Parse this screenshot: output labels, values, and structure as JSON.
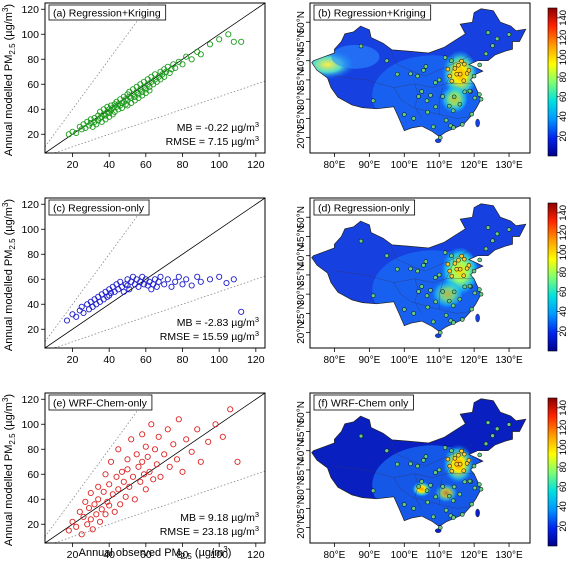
{
  "figure": {
    "x_axis_label": "Annual observed PM",
    "x_axis_label_sub": "2.5",
    "x_axis_label_unit": " (µg/m",
    "x_axis_label_sup": "3",
    "x_axis_label_tail": ")",
    "y_axis_label": "Annual modelled PM",
    "y_axis_label_sub": "2.5",
    "y_axis_label_unit": " (µg/m",
    "y_axis_label_sup": "3",
    "y_axis_label_tail": ")"
  },
  "colorbar": {
    "ticks": [
      "20",
      "40",
      "60",
      "80",
      "100",
      "120",
      "140"
    ],
    "tick_values": [
      20,
      40,
      60,
      80,
      100,
      120,
      140
    ],
    "range": [
      0,
      150
    ],
    "colors": [
      "#00008b",
      "#0033ff",
      "#00aaff",
      "#00e5e5",
      "#7fff7f",
      "#ffff00",
      "#ff9900",
      "#ff2200",
      "#8b0000"
    ]
  },
  "map_ticks": {
    "lon": [
      "80°E",
      "90°E",
      "100°E",
      "110°E",
      "120°E",
      "130°E"
    ],
    "lat": [
      "20°N",
      "25°N",
      "30°N",
      "35°N",
      "40°N",
      "45°N",
      "50°N"
    ]
  },
  "chart_data": [
    {
      "type": "scatter",
      "panel": "a",
      "title": "(a) Regression+Kriging",
      "color": "#1a9a1a",
      "xlim": [
        5,
        125
      ],
      "ylim": [
        5,
        125
      ],
      "xticks": [
        20,
        40,
        60,
        80,
        100,
        120
      ],
      "yticks": [
        20,
        40,
        60,
        80,
        100,
        120
      ],
      "reference_lines": [
        "1:1",
        "1:2",
        "2:1"
      ],
      "stats": {
        "mb_label": "MB = -0.22 µg/m",
        "rmse_label": "RMSE = 7.15 µg/m",
        "sup": "3"
      },
      "points": [
        [
          18,
          20
        ],
        [
          20,
          22
        ],
        [
          22,
          21
        ],
        [
          24,
          26
        ],
        [
          25,
          24
        ],
        [
          26,
          28
        ],
        [
          27,
          25
        ],
        [
          28,
          30
        ],
        [
          29,
          27
        ],
        [
          30,
          32
        ],
        [
          30,
          29
        ],
        [
          31,
          26
        ],
        [
          32,
          33
        ],
        [
          32,
          30
        ],
        [
          33,
          28
        ],
        [
          34,
          35
        ],
        [
          34,
          31
        ],
        [
          35,
          33
        ],
        [
          35,
          38
        ],
        [
          36,
          34
        ],
        [
          36,
          30
        ],
        [
          37,
          36
        ],
        [
          37,
          40
        ],
        [
          38,
          35
        ],
        [
          38,
          32
        ],
        [
          39,
          38
        ],
        [
          39,
          42
        ],
        [
          40,
          37
        ],
        [
          40,
          40
        ],
        [
          40,
          34
        ],
        [
          41,
          43
        ],
        [
          41,
          39
        ],
        [
          42,
          36
        ],
        [
          42,
          41
        ],
        [
          43,
          44
        ],
        [
          43,
          38
        ],
        [
          44,
          42
        ],
        [
          44,
          46
        ],
        [
          45,
          40
        ],
        [
          45,
          44
        ],
        [
          46,
          48
        ],
        [
          46,
          43
        ],
        [
          47,
          45
        ],
        [
          47,
          41
        ],
        [
          48,
          50
        ],
        [
          48,
          46
        ],
        [
          49,
          44
        ],
        [
          49,
          48
        ],
        [
          50,
          52
        ],
        [
          50,
          47
        ],
        [
          50,
          43
        ],
        [
          51,
          50
        ],
        [
          51,
          54
        ],
        [
          52,
          49
        ],
        [
          52,
          45
        ],
        [
          53,
          52
        ],
        [
          53,
          56
        ],
        [
          54,
          50
        ],
        [
          54,
          47
        ],
        [
          55,
          54
        ],
        [
          55,
          58
        ],
        [
          56,
          52
        ],
        [
          56,
          49
        ],
        [
          57,
          56
        ],
        [
          57,
          60
        ],
        [
          58,
          54
        ],
        [
          58,
          51
        ],
        [
          59,
          58
        ],
        [
          59,
          62
        ],
        [
          60,
          56
        ],
        [
          60,
          53
        ],
        [
          61,
          60
        ],
        [
          61,
          64
        ],
        [
          62,
          58
        ],
        [
          62,
          55
        ],
        [
          63,
          62
        ],
        [
          63,
          66
        ],
        [
          64,
          60
        ],
        [
          65,
          64
        ],
        [
          65,
          68
        ],
        [
          66,
          62
        ],
        [
          67,
          66
        ],
        [
          68,
          70
        ],
        [
          68,
          64
        ],
        [
          69,
          68
        ],
        [
          70,
          72
        ],
        [
          70,
          66
        ],
        [
          71,
          70
        ],
        [
          72,
          74
        ],
        [
          73,
          69
        ],
        [
          74,
          72
        ],
        [
          75,
          76
        ],
        [
          76,
          73
        ],
        [
          78,
          78
        ],
        [
          80,
          76
        ],
        [
          82,
          82
        ],
        [
          85,
          80
        ],
        [
          88,
          86
        ],
        [
          90,
          84
        ],
        [
          95,
          92
        ],
        [
          100,
          96
        ],
        [
          105,
          100
        ],
        [
          108,
          94
        ],
        [
          112,
          94
        ]
      ]
    },
    {
      "type": "scatter",
      "panel": "c",
      "title": "(c) Regression-only",
      "color": "#1a1acc",
      "xlim": [
        5,
        125
      ],
      "ylim": [
        5,
        125
      ],
      "xticks": [
        20,
        40,
        60,
        80,
        100,
        120
      ],
      "yticks": [
        20,
        40,
        60,
        80,
        100,
        120
      ],
      "reference_lines": [
        "1:1",
        "1:2",
        "2:1"
      ],
      "stats": {
        "mb_label": "MB = -2.83 µg/m",
        "rmse_label": "RMSE = 15.59 µg/m",
        "sup": "3"
      },
      "points": [
        [
          17,
          27
        ],
        [
          20,
          32
        ],
        [
          22,
          30
        ],
        [
          24,
          35
        ],
        [
          25,
          38
        ],
        [
          26,
          33
        ],
        [
          28,
          40
        ],
        [
          29,
          36
        ],
        [
          30,
          42
        ],
        [
          31,
          38
        ],
        [
          32,
          44
        ],
        [
          33,
          40
        ],
        [
          34,
          46
        ],
        [
          35,
          42
        ],
        [
          36,
          48
        ],
        [
          37,
          44
        ],
        [
          38,
          50
        ],
        [
          39,
          46
        ],
        [
          40,
          52
        ],
        [
          40,
          47
        ],
        [
          41,
          49
        ],
        [
          42,
          54
        ],
        [
          43,
          50
        ],
        [
          44,
          56
        ],
        [
          45,
          52
        ],
        [
          46,
          58
        ],
        [
          47,
          54
        ],
        [
          48,
          50
        ],
        [
          49,
          56
        ],
        [
          50,
          60
        ],
        [
          50,
          55
        ],
        [
          51,
          52
        ],
        [
          52,
          58
        ],
        [
          53,
          62
        ],
        [
          54,
          56
        ],
        [
          55,
          60
        ],
        [
          56,
          54
        ],
        [
          57,
          58
        ],
        [
          58,
          62
        ],
        [
          59,
          56
        ],
        [
          60,
          60
        ],
        [
          61,
          55
        ],
        [
          62,
          58
        ],
        [
          63,
          52
        ],
        [
          64,
          56
        ],
        [
          65,
          60
        ],
        [
          66,
          54
        ],
        [
          67,
          58
        ],
        [
          68,
          62
        ],
        [
          70,
          56
        ],
        [
          72,
          60
        ],
        [
          74,
          54
        ],
        [
          76,
          58
        ],
        [
          78,
          62
        ],
        [
          80,
          56
        ],
        [
          82,
          60
        ],
        [
          85,
          55
        ],
        [
          88,
          62
        ],
        [
          90,
          58
        ],
        [
          95,
          60
        ],
        [
          100,
          62
        ],
        [
          104,
          57
        ],
        [
          108,
          60
        ],
        [
          112,
          34
        ]
      ]
    },
    {
      "type": "scatter",
      "panel": "e",
      "title": "(e) WRF-Chem-only",
      "color": "#dd2222",
      "xlim": [
        5,
        125
      ],
      "ylim": [
        5,
        125
      ],
      "xticks": [
        20,
        40,
        60,
        80,
        100,
        120
      ],
      "yticks": [
        20,
        40,
        60,
        80,
        100,
        120
      ],
      "reference_lines": [
        "1:1",
        "1:2",
        "2:1"
      ],
      "stats": {
        "mb_label": "MB = 9.18 µg/m",
        "rmse_label": "RMSE = 23.18 µg/m",
        "sup": "3"
      },
      "points": [
        [
          18,
          15
        ],
        [
          20,
          22
        ],
        [
          22,
          18
        ],
        [
          24,
          30
        ],
        [
          25,
          12
        ],
        [
          26,
          26
        ],
        [
          27,
          38
        ],
        [
          28,
          20
        ],
        [
          29,
          33
        ],
        [
          30,
          45
        ],
        [
          30,
          24
        ],
        [
          31,
          16
        ],
        [
          32,
          36
        ],
        [
          33,
          28
        ],
        [
          34,
          50
        ],
        [
          34,
          40
        ],
        [
          35,
          22
        ],
        [
          36,
          32
        ],
        [
          37,
          46
        ],
        [
          38,
          60
        ],
        [
          38,
          28
        ],
        [
          39,
          38
        ],
        [
          40,
          52
        ],
        [
          40,
          35
        ],
        [
          41,
          70
        ],
        [
          42,
          44
        ],
        [
          43,
          30
        ],
        [
          44,
          58
        ],
        [
          45,
          48
        ],
        [
          45,
          80
        ],
        [
          46,
          36
        ],
        [
          47,
          62
        ],
        [
          48,
          54
        ],
        [
          49,
          42
        ],
        [
          50,
          72
        ],
        [
          50,
          64
        ],
        [
          51,
          50
        ],
        [
          52,
          88
        ],
        [
          53,
          58
        ],
        [
          54,
          40
        ],
        [
          55,
          76
        ],
        [
          56,
          66
        ],
        [
          57,
          54
        ],
        [
          58,
          92
        ],
        [
          58,
          70
        ],
        [
          59,
          60
        ],
        [
          60,
          48
        ],
        [
          60,
          82
        ],
        [
          61,
          74
        ],
        [
          62,
          62
        ],
        [
          63,
          100
        ],
        [
          64,
          56
        ],
        [
          65,
          80
        ],
        [
          66,
          68
        ],
        [
          67,
          90
        ],
        [
          68,
          58
        ],
        [
          70,
          76
        ],
        [
          72,
          96
        ],
        [
          73,
          66
        ],
        [
          75,
          84
        ],
        [
          77,
          72
        ],
        [
          78,
          104
        ],
        [
          80,
          62
        ],
        [
          82,
          88
        ],
        [
          85,
          78
        ],
        [
          88,
          96
        ],
        [
          90,
          70
        ],
        [
          94,
          86
        ],
        [
          98,
          100
        ],
        [
          102,
          90
        ],
        [
          106,
          112
        ],
        [
          110,
          70
        ]
      ]
    }
  ],
  "maps": [
    {
      "panel": "b",
      "title": "(b) Regression+Kriging"
    },
    {
      "panel": "d",
      "title": "(d) Regression-only"
    },
    {
      "panel": "f",
      "title": "(f) WRF-Chem only"
    }
  ]
}
